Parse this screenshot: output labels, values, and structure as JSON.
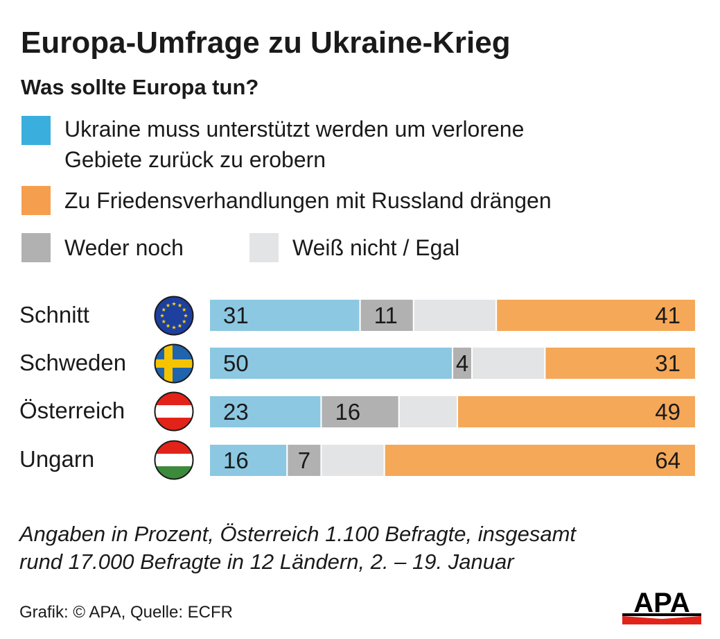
{
  "title": "Europa-Umfrage zu Ukraine-Krieg",
  "subtitle": "Was sollte Europa tun?",
  "legend": [
    {
      "key": "support",
      "lines": [
        "Ukraine muss unterstützt werden um verlorene",
        "Gebiete zurück zu erobern"
      ],
      "color": "#3aaedc"
    },
    {
      "key": "peace",
      "lines": [
        "Zu Friedensverhandlungen mit Russland drängen"
      ],
      "color": "#f59e4e"
    },
    {
      "key": "neither",
      "lines": [
        "Weder noch"
      ],
      "color": "#b1b1b1"
    },
    {
      "key": "dontknow",
      "lines": [
        "Weiß nicht / Egal"
      ],
      "color": "#e3e4e5"
    }
  ],
  "chart_data": {
    "type": "bar",
    "orientation": "horizontal",
    "stacked": true,
    "categories": [
      "Schnitt",
      "Schweden",
      "Österreich",
      "Ungarn"
    ],
    "flags": [
      "eu-flag-icon",
      "sweden-flag-icon",
      "austria-flag-icon",
      "hungary-flag-icon"
    ],
    "series": [
      {
        "name": "Ukraine muss unterstützt werden um verlorene Gebiete zurück zu erobern",
        "color": "#8cc8e2",
        "values": [
          31,
          50,
          23,
          16
        ],
        "labels": [
          "31",
          "50",
          "23",
          "16"
        ]
      },
      {
        "name": "Weder noch",
        "color": "#b1b1b1",
        "values": [
          11,
          4,
          16,
          7
        ],
        "labels": [
          "11",
          "4",
          "16",
          "7"
        ]
      },
      {
        "name": "Weiß nicht / Egal",
        "color": "#e3e4e5",
        "values": [
          17,
          15,
          12,
          13
        ],
        "labels": [
          "",
          "",
          "",
          ""
        ]
      },
      {
        "name": "Zu Friedensverhandlungen mit Russland drängen",
        "color": "#f5a858",
        "values": [
          41,
          31,
          49,
          64
        ],
        "labels": [
          "41",
          "31",
          "49",
          "64"
        ]
      }
    ],
    "xlim": [
      0,
      100
    ]
  },
  "note_lines": [
    "Angaben in Prozent, Österreich 1.100 Befragte, insgesamt",
    "rund 17.000 Befragte in 12 Ländern, 2. – 19. Januar"
  ],
  "source": "Grafik: © APA, Quelle: ECFR",
  "logo_text": "APA"
}
